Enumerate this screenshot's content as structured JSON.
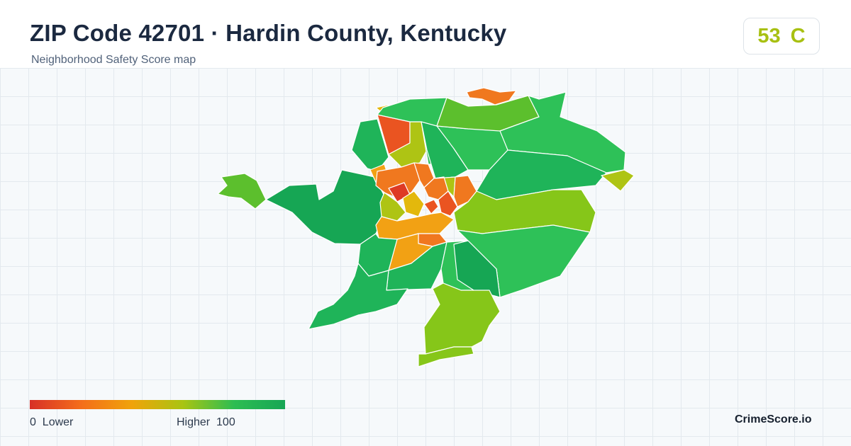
{
  "header": {
    "title": "ZIP Code 42701 · Hardin County, Kentucky",
    "subtitle": "Neighborhood Safety Score map"
  },
  "score": {
    "value": "53",
    "grade": "C",
    "color": "#a8c012"
  },
  "legend": {
    "min_value": "0",
    "min_label": "Lower",
    "max_label": "Higher",
    "max_value": "100",
    "gradient": [
      "#d73027",
      "#f46d1a",
      "#f0a30a",
      "#a9c412",
      "#2dbd52",
      "#17a655"
    ]
  },
  "brand": "CrimeScore.io",
  "map": {
    "region": "ZIP 42701",
    "color_scale": {
      "red": "#de3a24",
      "red_orange": "#ea5421",
      "orange": "#f0781f",
      "amber": "#f2a114",
      "yellow": "#e3b80c",
      "yellow_green": "#aec414",
      "lime": "#86c619",
      "light_green": "#5cbf2d",
      "green": "#2ec158",
      "mid_green": "#1fb459",
      "dark_green": "#16a654"
    }
  }
}
